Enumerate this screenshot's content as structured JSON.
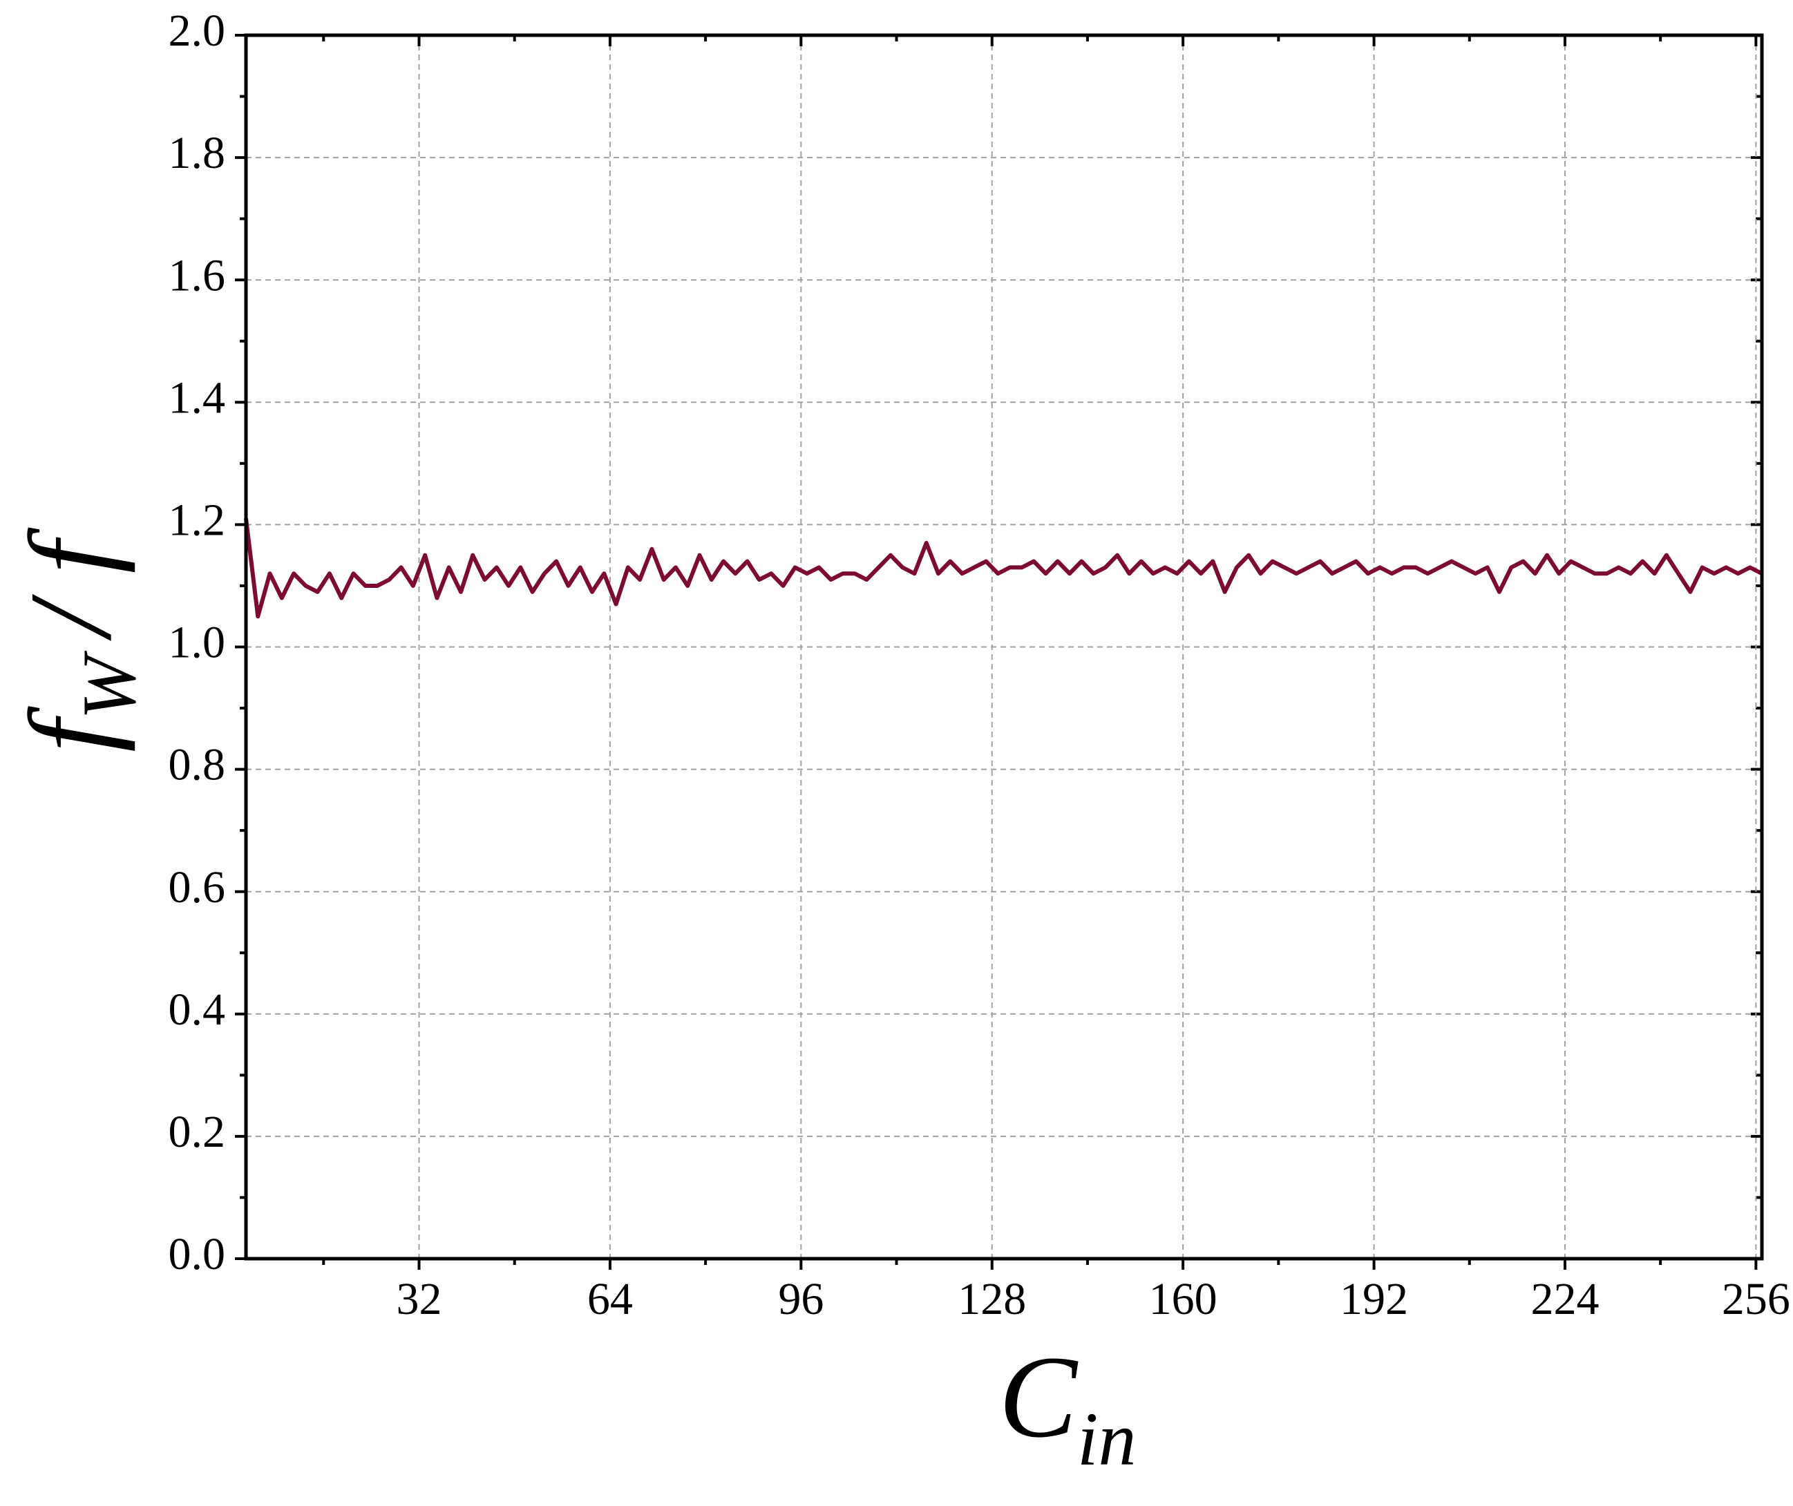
{
  "chart_data": {
    "type": "line",
    "xlabel": "C",
    "xlabel_sub": "in",
    "ylabel": "f",
    "ylabel_sub": "W",
    "ylabel_rest": "/ f",
    "x": [
      3,
      5,
      7,
      9,
      11,
      13,
      15,
      17,
      19,
      21,
      23,
      25,
      27,
      29,
      31,
      33,
      35,
      37,
      39,
      41,
      43,
      45,
      47,
      49,
      51,
      53,
      55,
      57,
      59,
      61,
      63,
      65,
      67,
      69,
      71,
      73,
      75,
      77,
      79,
      81,
      83,
      85,
      87,
      89,
      91,
      93,
      95,
      97,
      99,
      101,
      103,
      105,
      107,
      109,
      111,
      113,
      115,
      117,
      119,
      121,
      123,
      125,
      127,
      129,
      131,
      133,
      135,
      137,
      139,
      141,
      143,
      145,
      147,
      149,
      151,
      153,
      155,
      157,
      159,
      161,
      163,
      165,
      167,
      169,
      171,
      173,
      175,
      177,
      179,
      181,
      183,
      185,
      187,
      189,
      191,
      193,
      195,
      197,
      199,
      201,
      203,
      205,
      207,
      209,
      211,
      213,
      215,
      217,
      219,
      221,
      223,
      225,
      227,
      229,
      231,
      233,
      235,
      237,
      239,
      241,
      243,
      245,
      247,
      249,
      251,
      253,
      255,
      257
    ],
    "series": [
      {
        "color": "#7d0a33",
        "values": [
          1.21,
          1.05,
          1.12,
          1.08,
          1.12,
          1.1,
          1.09,
          1.12,
          1.08,
          1.12,
          1.1,
          1.1,
          1.11,
          1.13,
          1.1,
          1.15,
          1.08,
          1.13,
          1.09,
          1.15,
          1.11,
          1.13,
          1.1,
          1.13,
          1.09,
          1.12,
          1.14,
          1.1,
          1.13,
          1.09,
          1.12,
          1.07,
          1.13,
          1.11,
          1.16,
          1.11,
          1.13,
          1.1,
          1.15,
          1.11,
          1.14,
          1.12,
          1.14,
          1.11,
          1.12,
          1.1,
          1.13,
          1.12,
          1.13,
          1.11,
          1.12,
          1.12,
          1.11,
          1.13,
          1.15,
          1.13,
          1.12,
          1.17,
          1.12,
          1.14,
          1.12,
          1.13,
          1.14,
          1.12,
          1.13,
          1.13,
          1.14,
          1.12,
          1.14,
          1.12,
          1.14,
          1.12,
          1.13,
          1.15,
          1.12,
          1.14,
          1.12,
          1.13,
          1.12,
          1.14,
          1.12,
          1.14,
          1.09,
          1.13,
          1.15,
          1.12,
          1.14,
          1.13,
          1.12,
          1.13,
          1.14,
          1.12,
          1.13,
          1.14,
          1.12,
          1.13,
          1.12,
          1.13,
          1.13,
          1.12,
          1.13,
          1.14,
          1.13,
          1.12,
          1.13,
          1.09,
          1.13,
          1.14,
          1.12,
          1.15,
          1.12,
          1.14,
          1.13,
          1.12,
          1.12,
          1.13,
          1.12,
          1.14,
          1.12,
          1.15,
          1.12,
          1.09,
          1.13,
          1.12,
          1.13,
          1.12,
          1.13,
          1.12
        ]
      }
    ],
    "xlim": [
      3,
      257
    ],
    "ylim": [
      0,
      2
    ],
    "xticks": [
      32,
      64,
      96,
      128,
      160,
      192,
      224,
      256
    ],
    "xminorticks": [
      16,
      48,
      80,
      112,
      144,
      176,
      208,
      240
    ],
    "yticks": [
      {
        "value": 0,
        "label": "0.0"
      },
      0.2,
      0.4,
      0.6,
      0.8,
      {
        "value": 1,
        "label": "1.0"
      },
      1.2,
      1.4,
      1.6,
      1.8,
      {
        "value": 2,
        "label": "2.0"
      }
    ],
    "yminorticks": [
      0.1,
      0.3,
      0.5,
      0.7,
      0.9,
      1.1,
      1.3,
      1.5,
      1.7,
      1.9
    ],
    "grid": true
  }
}
